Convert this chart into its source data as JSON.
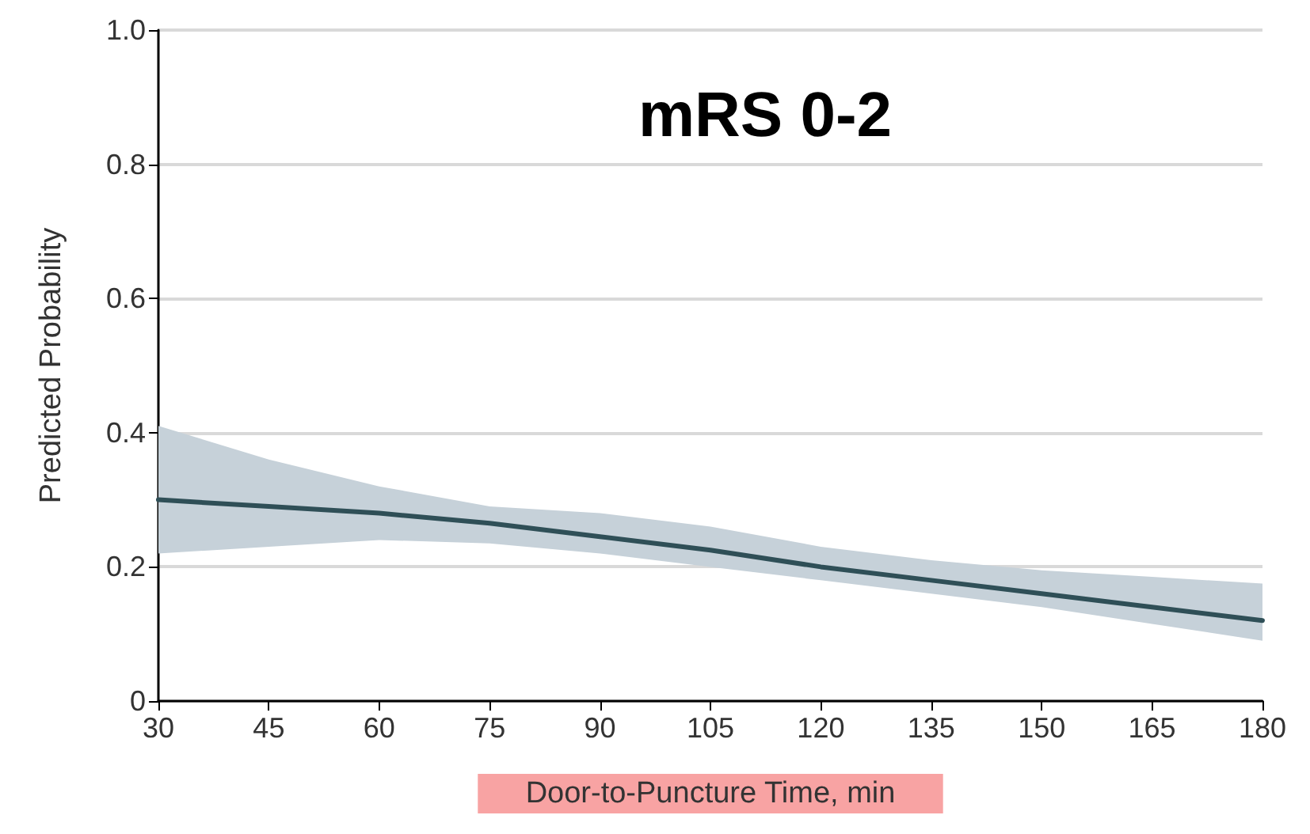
{
  "chart_data": {
    "type": "line",
    "title": "mRS 0-2",
    "xlabel": "Door-to-Puncture Time, min",
    "ylabel": "Predicted Probability",
    "x": [
      30,
      45,
      60,
      75,
      90,
      105,
      120,
      135,
      150,
      165,
      180
    ],
    "series": [
      {
        "color": "#2f4f57",
        "values": [
          0.3,
          0.29,
          0.28,
          0.265,
          0.245,
          0.225,
          0.2,
          0.18,
          0.16,
          0.14,
          0.12
        ],
        "lower": [
          0.22,
          0.23,
          0.24,
          0.235,
          0.22,
          0.2,
          0.18,
          0.16,
          0.14,
          0.115,
          0.09
        ],
        "upper": [
          0.41,
          0.36,
          0.32,
          0.29,
          0.28,
          0.26,
          0.23,
          0.21,
          0.195,
          0.185,
          0.175
        ]
      }
    ],
    "xlim": [
      30,
      180
    ],
    "xticks": [
      30,
      45,
      60,
      75,
      90,
      105,
      120,
      135,
      150,
      165,
      180
    ],
    "ylim": [
      0,
      1
    ],
    "yticks": [
      0,
      0.2,
      0.4,
      0.6,
      0.8,
      {
        "value": 1,
        "label": "1.0"
      }
    ],
    "grid": "y",
    "marker": "none",
    "line_style": "solid"
  }
}
